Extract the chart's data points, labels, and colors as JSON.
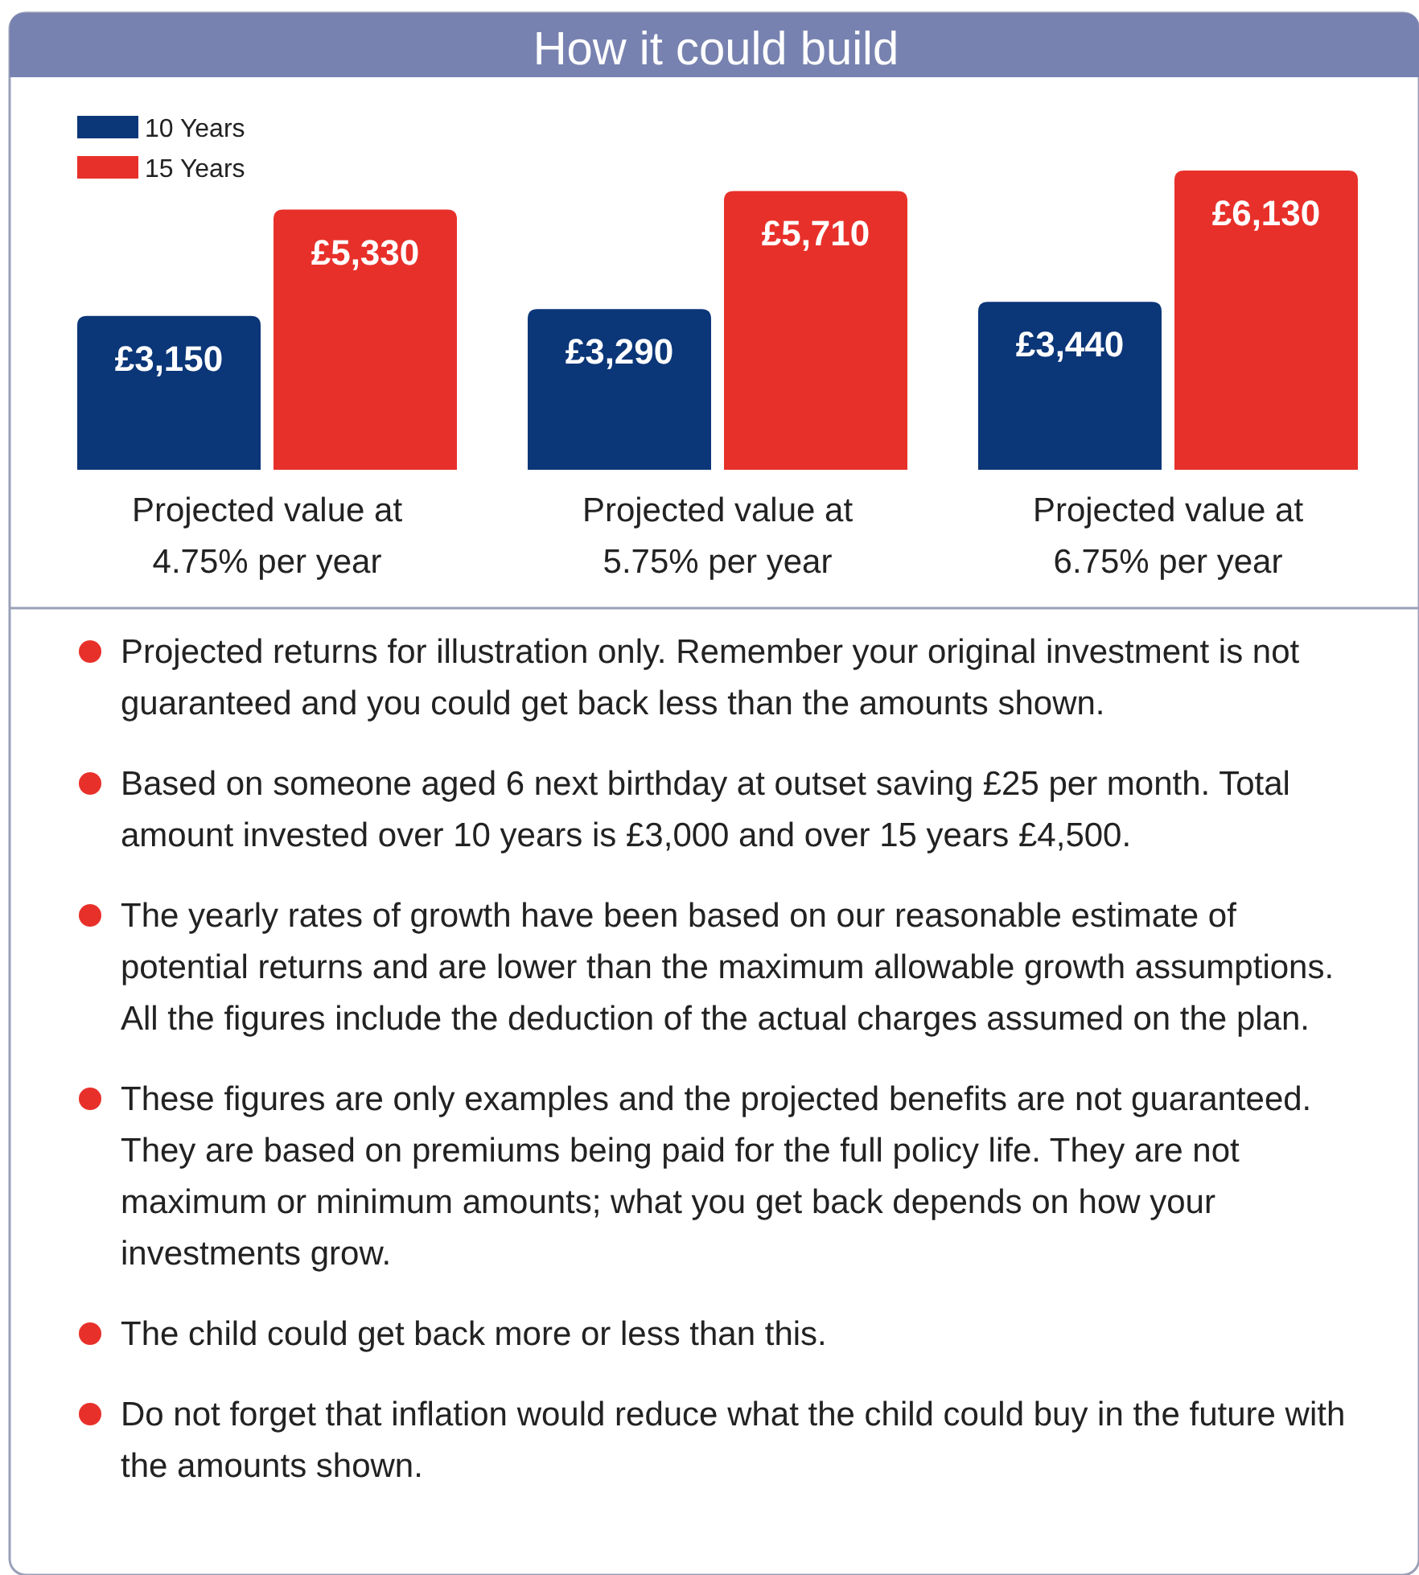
{
  "chart_data": {
    "type": "bar",
    "title": "How it could build",
    "relative": false,
    "categories": [
      "Projected value at 4.75% per year",
      "Projected value at 5.75% per year",
      "Projected value at 6.75% per year"
    ],
    "series": [
      {
        "name": "10 Years",
        "color": "#0b3678",
        "values": [
          3150,
          3290,
          3440
        ],
        "value_labels": [
          "£3,150",
          "£3,290",
          "£3,440"
        ]
      },
      {
        "name": "15 Years",
        "color": "#e8302a",
        "values": [
          5330,
          5710,
          6130
        ],
        "value_labels": [
          "£5,330",
          "£5,710",
          "£6,130"
        ]
      }
    ],
    "legend": "top left",
    "annotations": [
      "Projected returns for illustration only. Remember your original investment is not guaranteed and you could get back less than the amounts shown.",
      "Based on someone aged 6 next birthday at outset saving £25 per month. Total amount invested over 10 years is £3,000 and over 15 years £4,500.",
      "The yearly rates of growth have been based on our reasonable estimate of potential returns and are lower than the maximum allowable growth assumptions. All the figures include the deduction of the actual charges assumed on the plan.",
      "These figures are only examples and the projected benefits are not guaranteed. They are based on premiums being paid for the full policy life. They are not maximum or minimum amounts; what you get back depends on how your investments grow.",
      "The child could get back more or less than this.",
      "Do not forget that inflation would reduce what the child could buy in the future with the amounts shown."
    ]
  }
}
